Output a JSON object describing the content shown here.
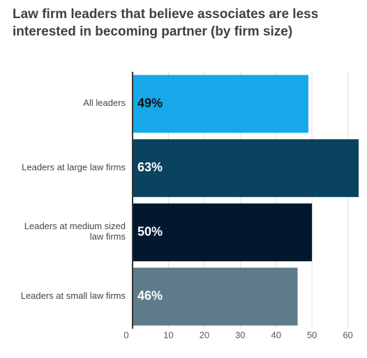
{
  "chart_data": {
    "type": "bar",
    "orientation": "horizontal",
    "title": "Law firm leaders that believe associates are less interested in becoming partner (by firm size)",
    "categories": [
      "All leaders",
      "Leaders at large law firms",
      "Leaders at medium sized law firms",
      "Leaders at small law firms"
    ],
    "category_lines": [
      [
        "All leaders"
      ],
      [
        "Leaders at large law firms"
      ],
      [
        "Leaders at medium sized",
        "law firms"
      ],
      [
        "Leaders at small law firms"
      ]
    ],
    "values": [
      49,
      63,
      50,
      46
    ],
    "value_labels": [
      "49%",
      "63%",
      "50%",
      "46%"
    ],
    "bar_colors": [
      "#17a8e9",
      "#0a4360",
      "#01182e",
      "#5e7b89"
    ],
    "label_colors": [
      "#111111",
      "#ffffff",
      "#ffffff",
      "#ffffff"
    ],
    "xlim": [
      0,
      63
    ],
    "xticks": [
      0,
      10,
      20,
      30,
      40,
      50,
      60
    ],
    "grid": true,
    "xlabel": "",
    "ylabel": ""
  }
}
